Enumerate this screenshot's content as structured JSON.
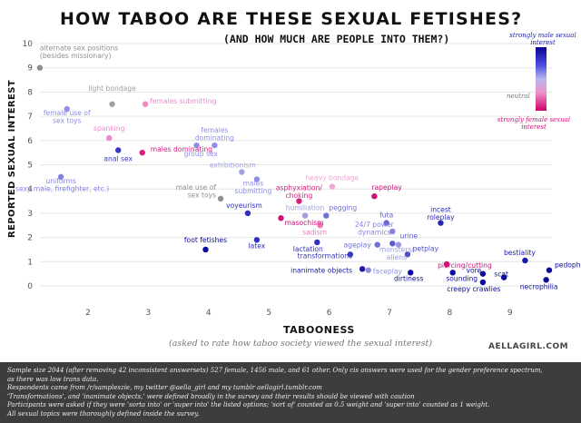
{
  "title": "HOW TABOO ARE THESE SEXUAL FETISHES?",
  "subtitle": "(AND HOW MUCH ARE PEOPLE INTO THEM?)",
  "credit": "AELLAGIRL.COM",
  "legend": {
    "top": "strongly male sexual interest",
    "middle": "neutral",
    "bottom": "strongly female sexual interest",
    "colors": {
      "male": "#0a0090",
      "neutral": "#9a9aa0",
      "female": "#d00070"
    }
  },
  "notes": [
    "Sample size 2044 (after removing 42 inconsistent answersets) 527 female, 1456 male, and 61 other. Only cis answers were used for the gender preference spectrum,",
    "as there was low trans data.",
    "Respondents came from /r/sampleszie, my twitter @aella_girl and my tumblr aellagirl.tumblr.com",
    "'Transformations', and 'inanimate objects,' were defined broadly in the survey and their results should be viewed with caution",
    "Participants were asked if they were 'sorta into' or 'super into' the listed options; 'sort of' counted as 0.5 weight and 'super into' counted as 1 weight.",
    "All sexual topics were thoroughly defined inside the survey."
  ],
  "chart_data": {
    "type": "scatter",
    "title": "HOW TABOO ARE THESE SEXUAL FETISHES?",
    "subtitle": "(AND HOW MUCH ARE PEOPLE INTO THEM?)",
    "xlabel": "TABOONESS",
    "xlabel_note": "(asked to rate how taboo society viewed the sexual interest)",
    "ylabel": "REPORTED SEXUAL INTEREST",
    "xlim": [
      1.1,
      9.8
    ],
    "ylim": [
      -0.5,
      10.3
    ],
    "xticks": [
      2,
      3,
      4,
      5,
      6,
      7,
      8,
      9
    ],
    "yticks": [
      0,
      1,
      2,
      3,
      4,
      5,
      6,
      7,
      8,
      9,
      10
    ],
    "grid": "horizontal",
    "color_scale": "gender preference: dark blue = strongly male, grey = neutral, magenta = strongly female",
    "points": [
      {
        "label": "alternate sex positions (besides missionary)",
        "x": 1.2,
        "y": 9.0,
        "color": "#909090"
      },
      {
        "label": "light bondage",
        "x": 2.4,
        "y": 7.5,
        "color": "#a0a0a0"
      },
      {
        "label": "females submitting",
        "x": 2.95,
        "y": 7.5,
        "color": "#ee8cc6"
      },
      {
        "label": "female use of sex toys",
        "x": 1.65,
        "y": 7.3,
        "color": "#8f8fe6"
      },
      {
        "label": "spanking",
        "x": 2.35,
        "y": 6.1,
        "color": "#ee8cc6"
      },
      {
        "label": "males dominating",
        "x": 2.9,
        "y": 5.5,
        "color": "#d6207f"
      },
      {
        "label": "anal sex",
        "x": 2.5,
        "y": 5.6,
        "color": "#3838c0"
      },
      {
        "label": "group sex",
        "x": 3.8,
        "y": 5.8,
        "color": "#8f8fe6"
      },
      {
        "label": "females dominating",
        "x": 4.1,
        "y": 5.8,
        "color": "#8f8fe6"
      },
      {
        "label": "uniforms (sexy maid, firefighter, etc.)",
        "x": 1.55,
        "y": 4.5,
        "color": "#8282e0"
      },
      {
        "label": "exhibitionism",
        "x": 4.55,
        "y": 4.7,
        "color": "#a0a0e0"
      },
      {
        "label": "males submitting",
        "x": 4.8,
        "y": 4.4,
        "color": "#8f8fe6"
      },
      {
        "label": "heavy bondage",
        "x": 6.05,
        "y": 4.1,
        "color": "#f2a6d4"
      },
      {
        "label": "male use of sex toys",
        "x": 4.2,
        "y": 3.6,
        "color": "#909090"
      },
      {
        "label": "asphyxiation/choking",
        "x": 5.5,
        "y": 3.5,
        "color": "#d6207f"
      },
      {
        "label": "rapeplay",
        "x": 6.75,
        "y": 3.7,
        "color": "#cc1177"
      },
      {
        "label": "voyeurism",
        "x": 4.65,
        "y": 3.0,
        "color": "#3030b8"
      },
      {
        "label": "masochism",
        "x": 5.2,
        "y": 2.8,
        "color": "#cc1177"
      },
      {
        "label": "humiliation",
        "x": 5.6,
        "y": 2.9,
        "color": "#a0a0e0"
      },
      {
        "label": "pegging",
        "x": 5.95,
        "y": 2.9,
        "color": "#7070d8"
      },
      {
        "label": "futa",
        "x": 6.95,
        "y": 2.6,
        "color": "#6565d4"
      },
      {
        "label": "incest roleplay",
        "x": 7.85,
        "y": 2.6,
        "color": "#2828b0"
      },
      {
        "label": "sadism",
        "x": 5.85,
        "y": 2.5,
        "color": "#ef7ab8"
      },
      {
        "label": "24/7 power dynamics",
        "x": 7.05,
        "y": 2.25,
        "color": "#8484e0"
      },
      {
        "label": "foot fetishes",
        "x": 3.95,
        "y": 1.5,
        "color": "#0c0c9c"
      },
      {
        "label": "latex",
        "x": 4.8,
        "y": 1.9,
        "color": "#3030b8"
      },
      {
        "label": "lactation",
        "x": 5.8,
        "y": 1.8,
        "color": "#3030b8"
      },
      {
        "label": "ageplay",
        "x": 6.8,
        "y": 1.7,
        "color": "#7070d8"
      },
      {
        "label": "urine",
        "x": 7.05,
        "y": 1.75,
        "color": "#5a5ad0"
      },
      {
        "label": "monsters/aliens",
        "x": 7.15,
        "y": 1.7,
        "color": "#9a9ae4"
      },
      {
        "label": "petplay",
        "x": 7.3,
        "y": 1.3,
        "color": "#5050c8"
      },
      {
        "label": "transformations",
        "x": 6.35,
        "y": 1.3,
        "color": "#3838c0"
      },
      {
        "label": "piercing/cutting",
        "x": 7.95,
        "y": 0.9,
        "color": "#cc1177"
      },
      {
        "label": "inanimate objects",
        "x": 6.55,
        "y": 0.7,
        "color": "#1a1aa8"
      },
      {
        "label": "faceplay",
        "x": 6.65,
        "y": 0.65,
        "color": "#8f8fe6"
      },
      {
        "label": "dirtiness",
        "x": 7.35,
        "y": 0.55,
        "color": "#0c0c9c"
      },
      {
        "label": "sounding",
        "x": 8.05,
        "y": 0.55,
        "color": "#0c0c9c"
      },
      {
        "label": "vore",
        "x": 8.55,
        "y": 0.5,
        "color": "#0c0c9c"
      },
      {
        "label": "scat",
        "x": 8.9,
        "y": 0.35,
        "color": "#0c0c9c"
      },
      {
        "label": "creepy crawlies",
        "x": 8.55,
        "y": 0.15,
        "color": "#0c0c9c"
      },
      {
        "label": "bestiality",
        "x": 9.25,
        "y": 1.05,
        "color": "#1a1aa8"
      },
      {
        "label": "pedophilia",
        "x": 9.65,
        "y": 0.65,
        "color": "#0c0c9c"
      },
      {
        "label": "necrophilia",
        "x": 9.6,
        "y": 0.25,
        "color": "#0c0c9c"
      }
    ]
  }
}
